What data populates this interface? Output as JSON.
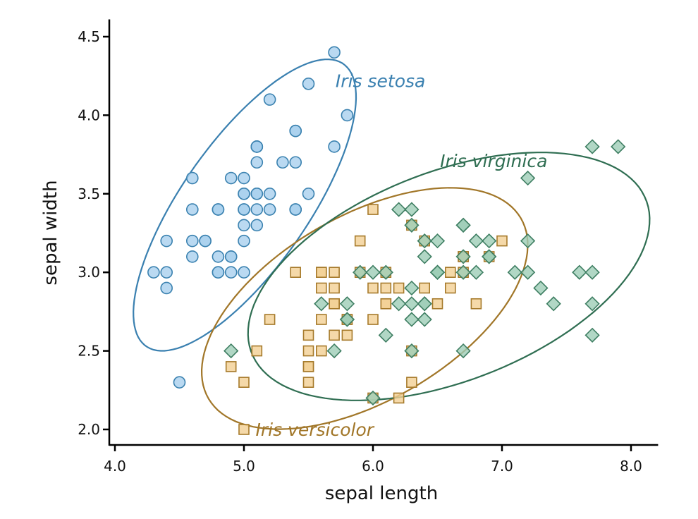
{
  "chart_data": {
    "type": "scatter",
    "title": "",
    "xlabel": "sepal length",
    "ylabel": "sepal width",
    "xlim": [
      3.95,
      8.21
    ],
    "ylim": [
      1.9,
      4.61
    ],
    "xticks": [
      4.0,
      5.0,
      6.0,
      7.0,
      8.0
    ],
    "xtick_labels": [
      "4.0",
      "5.0",
      "6.0",
      "7.0",
      "8.0"
    ],
    "yticks": [
      2.0,
      2.5,
      3.0,
      3.5,
      4.0,
      4.5
    ],
    "ytick_labels": [
      "2.0",
      "2.5",
      "3.0",
      "3.5",
      "4.0",
      "4.5"
    ],
    "grid": false,
    "legend": "direct labels",
    "ellipse_confidence": 0.95,
    "series": [
      {
        "name": "Iris setosa",
        "marker": "circle",
        "fill": "#a9cfee",
        "stroke": "#3b82b0",
        "label_color": "#3a80b0",
        "x": [
          5.1,
          4.9,
          4.7,
          4.6,
          5.0,
          5.4,
          4.6,
          5.0,
          4.4,
          4.9,
          5.4,
          4.8,
          4.8,
          4.3,
          5.8,
          5.7,
          5.4,
          5.1,
          5.7,
          5.1,
          5.4,
          5.1,
          4.6,
          5.1,
          4.8,
          5.0,
          5.0,
          5.2,
          5.2,
          4.7,
          4.8,
          5.4,
          5.2,
          5.5,
          4.9,
          5.0,
          5.5,
          4.9,
          4.4,
          5.1,
          5.0,
          4.5,
          4.4,
          5.0,
          5.1,
          4.8,
          5.1,
          4.6,
          5.3,
          5.0
        ],
        "y": [
          3.5,
          3.0,
          3.2,
          3.1,
          3.6,
          3.9,
          3.4,
          3.4,
          2.9,
          3.1,
          3.7,
          3.4,
          3.0,
          3.0,
          4.0,
          4.4,
          3.9,
          3.5,
          3.8,
          3.8,
          3.4,
          3.7,
          3.6,
          3.3,
          3.4,
          3.0,
          3.4,
          3.5,
          3.4,
          3.2,
          3.1,
          3.4,
          4.1,
          4.2,
          3.1,
          3.2,
          3.5,
          3.6,
          3.0,
          3.4,
          3.5,
          2.3,
          3.2,
          3.5,
          3.8,
          3.0,
          3.8,
          3.2,
          3.7,
          3.3
        ]
      },
      {
        "name": "Iris versicolor",
        "marker": "square",
        "fill": "#f2cf93",
        "stroke": "#a67a2b",
        "label_color": "#a17628",
        "x": [
          7.0,
          6.4,
          6.9,
          5.5,
          6.5,
          5.7,
          6.3,
          4.9,
          6.6,
          5.2,
          5.0,
          5.9,
          6.0,
          6.1,
          5.6,
          6.7,
          5.6,
          5.8,
          6.2,
          5.6,
          5.9,
          6.1,
          6.3,
          6.1,
          6.4,
          6.6,
          6.8,
          6.7,
          6.0,
          5.7,
          5.5,
          5.5,
          5.8,
          6.0,
          5.4,
          6.0,
          6.7,
          6.3,
          5.6,
          5.5,
          5.5,
          6.1,
          5.8,
          5.0,
          5.6,
          5.7,
          5.7,
          6.2,
          5.1,
          5.7
        ],
        "y": [
          3.2,
          3.2,
          3.1,
          2.3,
          2.8,
          2.8,
          3.3,
          2.4,
          2.9,
          2.7,
          2.0,
          3.0,
          2.2,
          2.9,
          2.9,
          3.1,
          3.0,
          2.7,
          2.2,
          2.5,
          3.2,
          2.8,
          2.5,
          2.8,
          2.9,
          3.0,
          2.8,
          3.0,
          2.9,
          2.6,
          2.4,
          2.4,
          2.7,
          2.7,
          3.0,
          3.4,
          3.1,
          2.3,
          3.0,
          2.5,
          2.6,
          3.0,
          2.6,
          2.3,
          2.7,
          3.0,
          2.9,
          2.9,
          2.5,
          2.8
        ]
      },
      {
        "name": "Iris virginica",
        "marker": "diamond",
        "fill": "#9ecdb7",
        "stroke": "#3e7e62",
        "label_color": "#2f6e52",
        "x": [
          6.3,
          5.8,
          7.1,
          6.3,
          6.5,
          7.6,
          4.9,
          7.3,
          6.7,
          7.2,
          6.5,
          6.4,
          6.8,
          5.7,
          5.8,
          6.4,
          6.5,
          7.7,
          7.7,
          6.0,
          6.9,
          5.6,
          7.7,
          6.3,
          6.7,
          7.2,
          6.2,
          6.1,
          6.4,
          7.2,
          7.4,
          7.9,
          6.4,
          6.3,
          6.1,
          7.7,
          6.3,
          6.4,
          6.0,
          6.9,
          6.7,
          6.9,
          5.8,
          6.8,
          6.7,
          6.7,
          6.3,
          6.5,
          6.2,
          5.9
        ],
        "y": [
          3.3,
          2.7,
          3.0,
          2.9,
          3.0,
          3.0,
          2.5,
          2.9,
          2.5,
          3.6,
          3.2,
          2.7,
          3.0,
          2.5,
          2.8,
          3.2,
          3.0,
          3.8,
          2.6,
          2.2,
          3.2,
          2.8,
          2.8,
          2.7,
          3.3,
          3.2,
          2.8,
          3.0,
          2.8,
          3.0,
          2.8,
          3.8,
          2.8,
          2.8,
          2.6,
          3.0,
          3.4,
          3.1,
          3.0,
          3.1,
          3.1,
          3.1,
          2.7,
          3.2,
          3.3,
          3.0,
          2.5,
          3.0,
          3.4,
          3.0
        ]
      }
    ],
    "annotations": [
      {
        "text": "Iris setosa",
        "series": 0,
        "x": 5.71,
        "y": 4.22
      },
      {
        "text": "Iris virginica",
        "series": 2,
        "x": 6.52,
        "y": 3.71
      },
      {
        "text": "Iris versicolor",
        "series": 1,
        "x": 5.09,
        "y": 2.0
      }
    ]
  }
}
